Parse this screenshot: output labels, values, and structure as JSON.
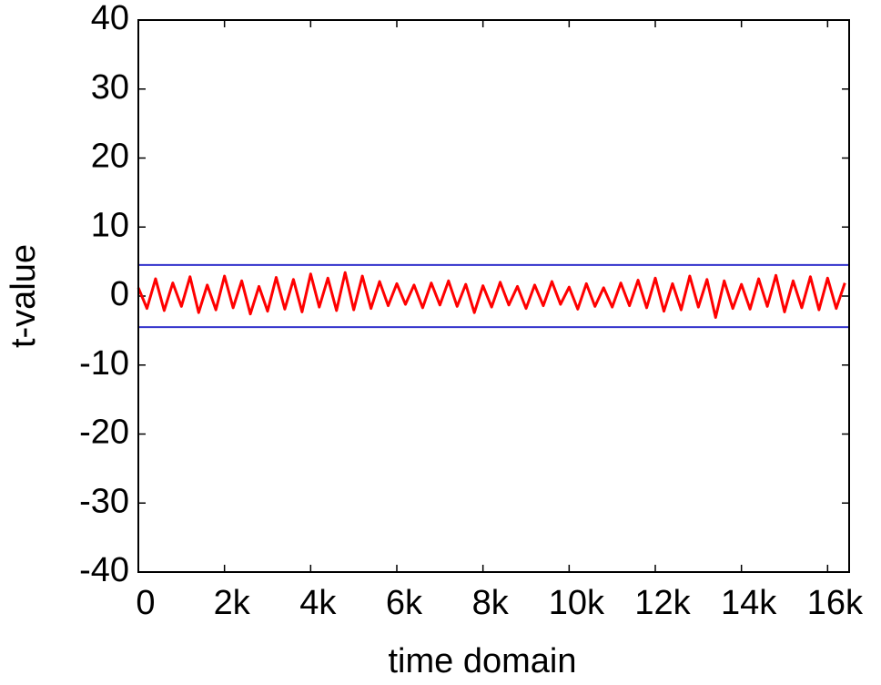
{
  "chart_data": {
    "type": "line",
    "xlabel": "time domain",
    "ylabel": "t-value",
    "x": [
      0,
      200,
      400,
      600,
      800,
      1000,
      1200,
      1400,
      1600,
      1800,
      2000,
      2200,
      2400,
      2600,
      2800,
      3000,
      3200,
      3400,
      3600,
      3800,
      4000,
      4200,
      4400,
      4600,
      4800,
      5000,
      5200,
      5400,
      5600,
      5800,
      6000,
      6200,
      6400,
      6600,
      6800,
      7000,
      7200,
      7400,
      7600,
      7800,
      8000,
      8200,
      8400,
      8600,
      8800,
      9000,
      9200,
      9400,
      9600,
      9800,
      10000,
      10200,
      10400,
      10600,
      10800,
      11000,
      11200,
      11400,
      11600,
      11800,
      12000,
      12200,
      12400,
      12600,
      12800,
      13000,
      13200,
      13400,
      13600,
      13800,
      14000,
      14200,
      14400,
      14600,
      14800,
      15000,
      15200,
      15400,
      15600,
      15800,
      16000,
      16200,
      16400
    ],
    "series": [
      {
        "color": "#ff0000",
        "values": [
          1.2,
          -1.8,
          2.5,
          -2.1,
          1.9,
          -1.5,
          2.8,
          -2.4,
          1.6,
          -2.0,
          2.9,
          -1.7,
          2.2,
          -2.6,
          1.4,
          -2.2,
          2.7,
          -1.9,
          2.4,
          -2.3,
          3.2,
          -1.6,
          2.6,
          -2.1,
          3.4,
          -2.0,
          2.9,
          -1.8,
          2.1,
          -1.4,
          1.8,
          -1.2,
          1.6,
          -1.7,
          1.9,
          -1.3,
          2.2,
          -1.5,
          1.7,
          -2.4,
          1.5,
          -1.6,
          2.0,
          -1.3,
          1.4,
          -1.8,
          1.6,
          -1.4,
          2.1,
          -1.2,
          1.3,
          -1.9,
          1.8,
          -1.5,
          1.2,
          -1.6,
          1.9,
          -1.4,
          2.3,
          -1.7,
          2.6,
          -2.2,
          1.8,
          -2.0,
          2.9,
          -1.6,
          2.4,
          -3.1,
          2.2,
          -1.8,
          1.7,
          -1.9,
          2.5,
          -1.5,
          3.0,
          -2.3,
          2.2,
          -1.7,
          2.8,
          -2.0,
          2.6,
          -1.8,
          1.9
        ]
      }
    ],
    "hlines": {
      "color": "#3333cc",
      "values": [
        4.5,
        -4.5
      ]
    },
    "xlim": [
      0,
      16500
    ],
    "ylim": [
      -40,
      40
    ],
    "xticks": [
      {
        "value": 0,
        "label": "0"
      },
      {
        "value": 2000,
        "label": "2k"
      },
      {
        "value": 4000,
        "label": "4k"
      },
      {
        "value": 6000,
        "label": "6k"
      },
      {
        "value": 8000,
        "label": "8k"
      },
      {
        "value": 10000,
        "label": "10k"
      },
      {
        "value": 12000,
        "label": "12k"
      },
      {
        "value": 14000,
        "label": "14k"
      },
      {
        "value": 16000,
        "label": "16k"
      }
    ],
    "yticks": [
      -40,
      -30,
      -20,
      -10,
      0,
      10,
      20,
      30,
      40
    ],
    "grid": false
  }
}
